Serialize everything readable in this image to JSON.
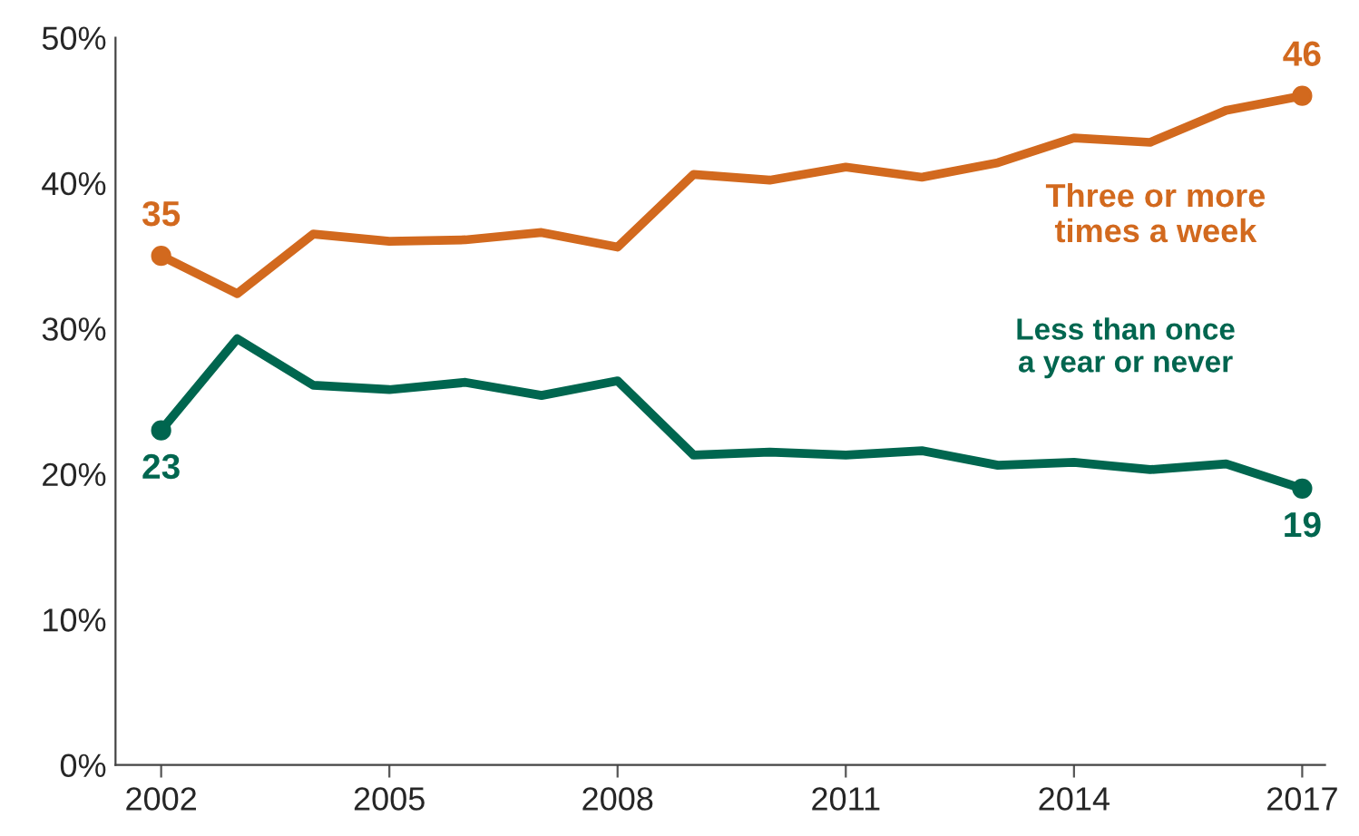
{
  "chart_data": {
    "type": "line",
    "x": [
      2002,
      2003,
      2004,
      2005,
      2006,
      2007,
      2008,
      2009,
      2010,
      2011,
      2012,
      2013,
      2014,
      2015,
      2016,
      2017
    ],
    "series": [
      {
        "name": "Three or more\ntimes a week",
        "color": "#d2691e",
        "values": [
          35,
          32.4,
          36.5,
          36.0,
          36.1,
          36.6,
          35.6,
          40.6,
          40.2,
          41.1,
          40.4,
          41.4,
          43.1,
          42.8,
          45.0,
          46
        ],
        "value_labels": [
          "35",
          null,
          null,
          null,
          null,
          null,
          null,
          null,
          null,
          null,
          null,
          null,
          null,
          null,
          null,
          "46"
        ]
      },
      {
        "name": "Less than once\na year or never",
        "color": "#00664f",
        "values": [
          23,
          29.3,
          26.1,
          25.8,
          26.3,
          25.4,
          26.4,
          21.3,
          21.5,
          21.3,
          21.6,
          20.6,
          20.8,
          20.3,
          20.7,
          19
        ],
        "value_labels": [
          "23",
          null,
          null,
          null,
          null,
          null,
          null,
          null,
          null,
          null,
          null,
          null,
          null,
          null,
          null,
          "19"
        ]
      }
    ],
    "xlim": [
      2001.4,
      2017.3
    ],
    "xticks": [
      2002,
      2005,
      2008,
      2011,
      2014,
      2017
    ],
    "ylim": [
      0,
      50
    ],
    "yticks": [
      {
        "value": 0,
        "label": "0%"
      },
      {
        "value": 10,
        "label": "10%"
      },
      {
        "value": 20,
        "label": "20%"
      },
      {
        "value": 30,
        "label": "30%"
      },
      {
        "value": 40,
        "label": "40%"
      },
      {
        "value": 50,
        "label": "50%"
      }
    ],
    "grid": false,
    "legend": false,
    "line_style": "solid"
  }
}
